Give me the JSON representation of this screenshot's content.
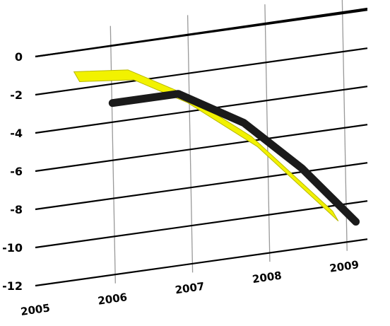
{
  "chart_data": {
    "type": "line",
    "title": "",
    "xlabel": "",
    "ylabel": "",
    "x_ticks": [
      "2005",
      "2006",
      "2007",
      "2008",
      "2009"
    ],
    "y_ticks": [
      0,
      -2,
      -4,
      -6,
      -8,
      -10,
      -12
    ],
    "ylim": [
      -12,
      0
    ],
    "grid": true,
    "series": [
      {
        "color": "#1a1a1a",
        "points": [
          {
            "x": 2006.0,
            "y": -3.0
          },
          {
            "x": 2006.85,
            "y": -3.0
          },
          {
            "x": 2007.7,
            "y": -5.0
          },
          {
            "x": 2008.45,
            "y": -7.8
          },
          {
            "x": 2009.15,
            "y": -11.0
          }
        ]
      },
      {
        "color": "#f2f200",
        "points": [
          {
            "x": 2005.5,
            "y": -1.3
          },
          {
            "x": 2006.2,
            "y": -1.6
          },
          {
            "x": 2006.9,
            "y": -3.2
          },
          {
            "x": 2007.8,
            "y": -6.0
          },
          {
            "x": 2008.85,
            "y": -10.5
          }
        ]
      }
    ]
  }
}
